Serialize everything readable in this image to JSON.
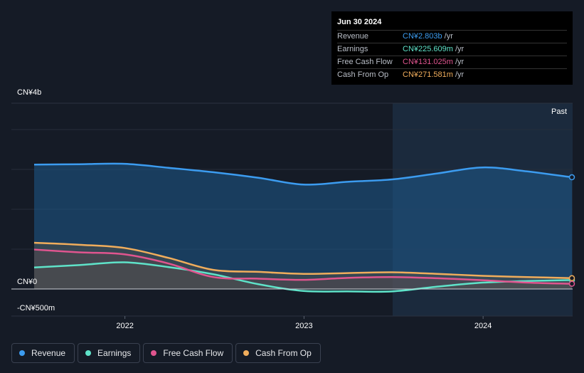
{
  "tooltip": {
    "date": "Jun 30 2024",
    "rows": [
      {
        "label": "Revenue",
        "value": "CN¥2.803b",
        "unit": "/yr",
        "color": "#3c9cf0"
      },
      {
        "label": "Earnings",
        "value": "CN¥225.609m",
        "unit": "/yr",
        "color": "#5fe3c9"
      },
      {
        "label": "Free Cash Flow",
        "value": "CN¥131.025m",
        "unit": "/yr",
        "color": "#e0558f"
      },
      {
        "label": "Cash From Op",
        "value": "CN¥271.581m",
        "unit": "/yr",
        "color": "#f0ad5c"
      }
    ]
  },
  "chart_data": {
    "type": "area",
    "title": "",
    "y_tick_labels": [
      "CN¥4b",
      "CN¥0",
      "-CN¥500m"
    ],
    "x_tick_labels": [
      "2022",
      "2023",
      "2024"
    ],
    "past_label": "Past",
    "ylim": [
      -500,
      4000
    ],
    "y_unit": "CN¥m",
    "legend_position": "bottom",
    "grid": true,
    "x": [
      "2021-06-30",
      "2021-09-30",
      "2021-12-31",
      "2022-03-31",
      "2022-06-30",
      "2022-09-30",
      "2022-12-31",
      "2023-03-31",
      "2023-06-30",
      "2023-09-30",
      "2023-12-31",
      "2024-03-31",
      "2024-06-30"
    ],
    "series": [
      {
        "name": "Revenue",
        "color": "#3c9cf0",
        "values": [
          3120,
          3130,
          3140,
          3040,
          2930,
          2790,
          2620,
          2690,
          2750,
          2900,
          3050,
          2950,
          2803
        ]
      },
      {
        "name": "Earnings",
        "color": "#5fe3c9",
        "values": [
          540,
          600,
          670,
          550,
          370,
          120,
          -50,
          -60,
          -60,
          60,
          160,
          200,
          226
        ]
      },
      {
        "name": "Free Cash Flow",
        "color": "#e0558f",
        "values": [
          990,
          920,
          870,
          640,
          300,
          260,
          230,
          280,
          300,
          270,
          220,
          160,
          131
        ]
      },
      {
        "name": "Cash From Op",
        "color": "#f0ad5c",
        "values": [
          1160,
          1110,
          1030,
          780,
          480,
          430,
          380,
          400,
          420,
          380,
          330,
          300,
          272
        ]
      }
    ]
  },
  "legend": [
    {
      "label": "Revenue",
      "color": "#3c9cf0"
    },
    {
      "label": "Earnings",
      "color": "#5fe3c9"
    },
    {
      "label": "Free Cash Flow",
      "color": "#e0558f"
    },
    {
      "label": "Cash From Op",
      "color": "#f0ad5c"
    }
  ]
}
